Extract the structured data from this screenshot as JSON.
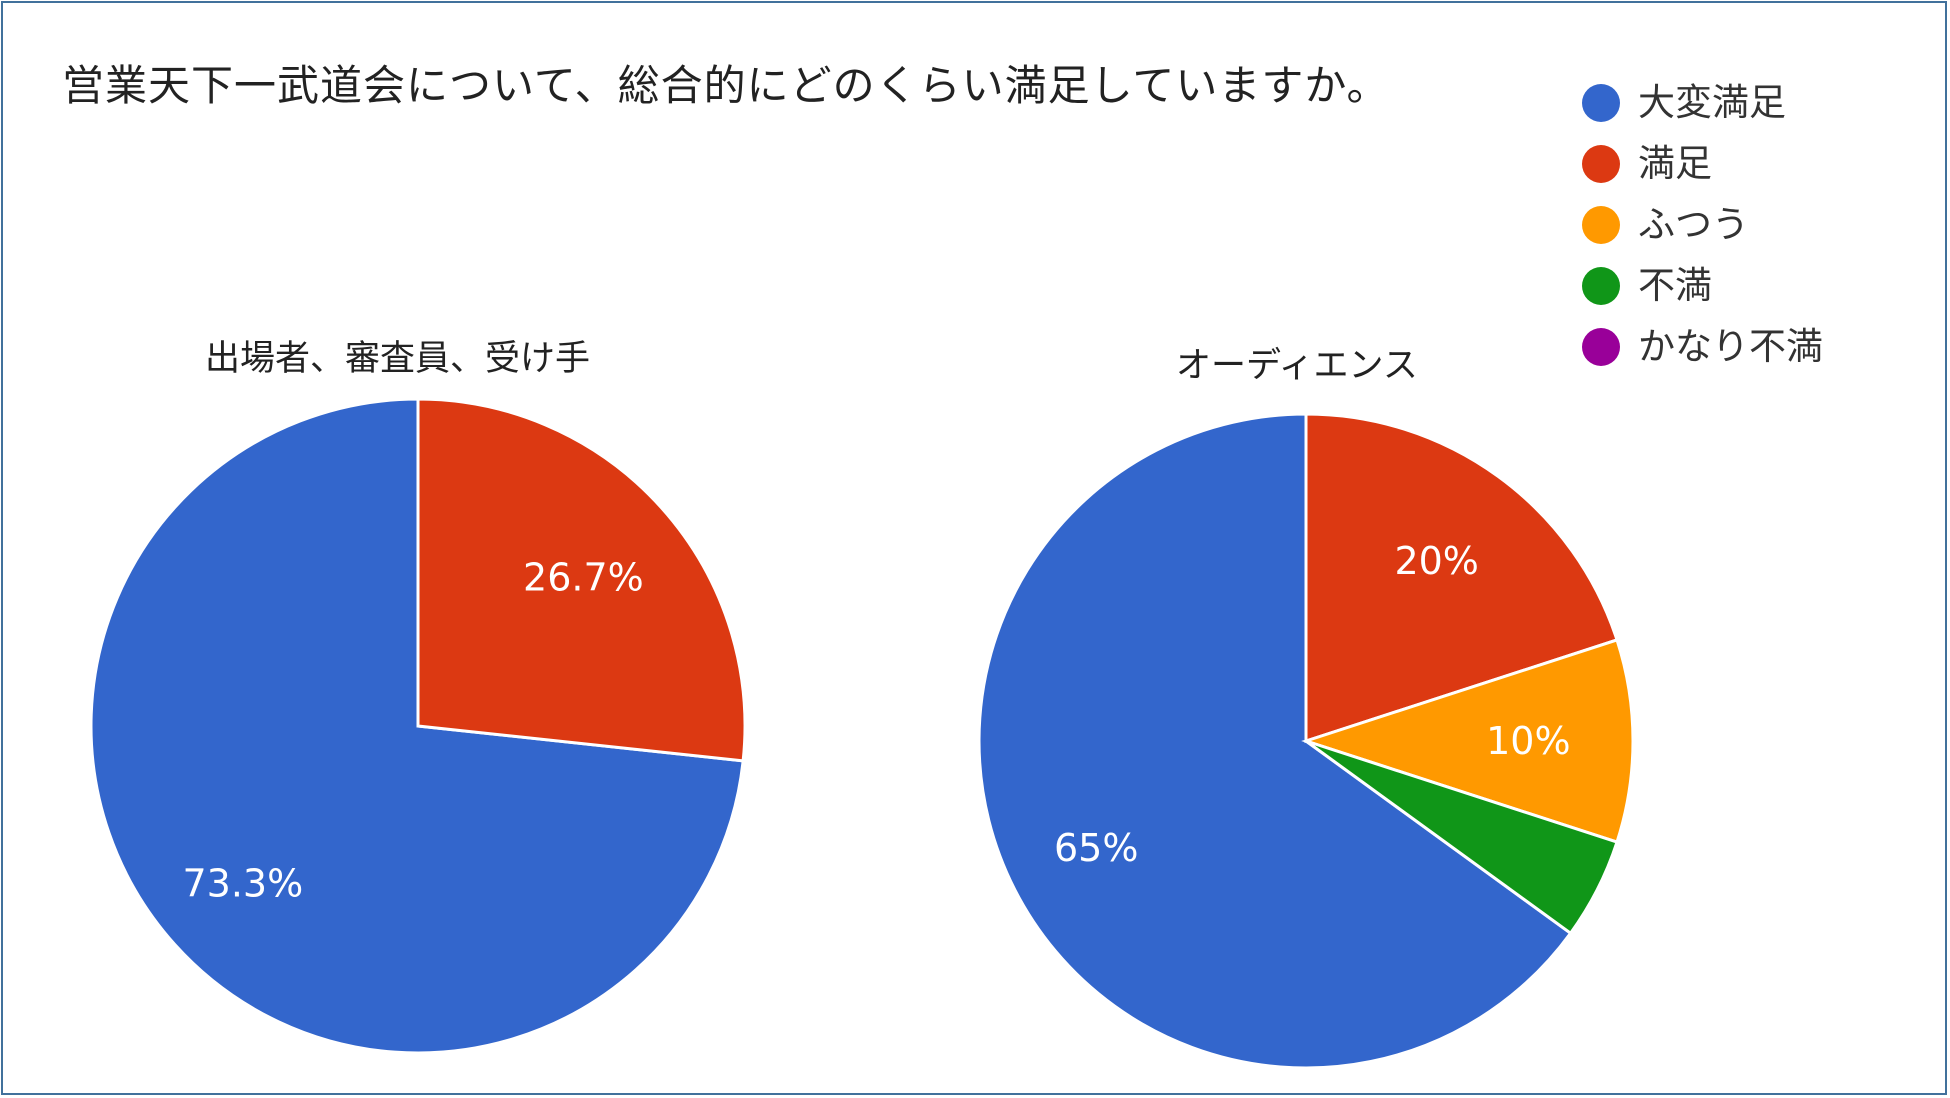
{
  "title": "営業天下一武道会について、総合的にどのくらい満足していますか。",
  "legend": [
    {
      "label": "大変満足",
      "color": "#3366cc"
    },
    {
      "label": "満足",
      "color": "#dc3912"
    },
    {
      "label": "ふつう",
      "color": "#ff9900"
    },
    {
      "label": "不満",
      "color": "#109618"
    },
    {
      "label": "かなり不満",
      "color": "#990099"
    }
  ],
  "chart_data": [
    {
      "type": "pie",
      "title": "出場者、審査員、受け手",
      "categories": [
        "大変満足",
        "満足",
        "ふつう",
        "不満",
        "かなり不満"
      ],
      "values": [
        73.3,
        26.7,
        0,
        0,
        0
      ],
      "labels": [
        "73.3%",
        "26.7%",
        "",
        "",
        ""
      ],
      "colors": [
        "#3366cc",
        "#dc3912",
        "#ff9900",
        "#109618",
        "#990099"
      ]
    },
    {
      "type": "pie",
      "title": "オーディエンス",
      "categories": [
        "大変満足",
        "満足",
        "ふつう",
        "不満",
        "かなり不満"
      ],
      "values": [
        65,
        20,
        10,
        5,
        0
      ],
      "labels": [
        "65%",
        "20%",
        "10%",
        "",
        ""
      ],
      "colors": [
        "#3366cc",
        "#dc3912",
        "#ff9900",
        "#109618",
        "#990099"
      ]
    }
  ]
}
